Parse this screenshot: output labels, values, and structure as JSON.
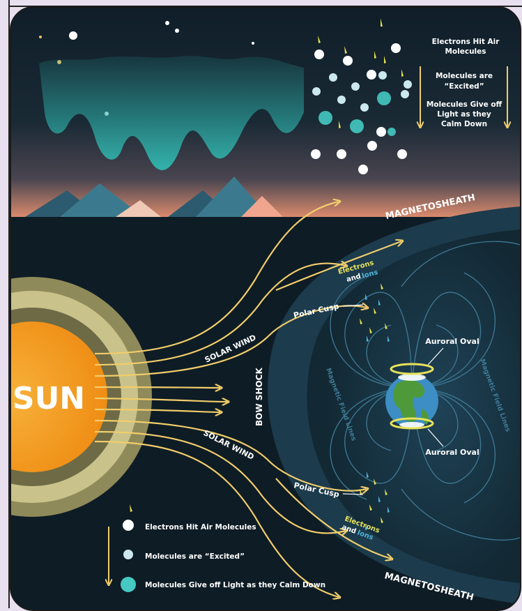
{
  "sky_legend": {
    "step1": [
      "Electrons Hit Air",
      "Molecules"
    ],
    "step2": [
      "Molecules are",
      "“Excited”"
    ],
    "step3": [
      "Molecules Give off",
      "Light as they",
      "Calm Down"
    ]
  },
  "labels": {
    "magnetosheath_top": "MAGNETOSHEATH",
    "magnetosheath_bottom": "MAGNETOSHEATH",
    "electrons_top": "Electrons",
    "and_ions_top_and": "and",
    "and_ions_top_ions": "Ions",
    "electrons_bottom": "Electrons",
    "and_ions_bottom_and": "and",
    "and_ions_bottom_ions": "Ions",
    "polar_cusp_top": "Polar Cusp",
    "polar_cusp_bottom": "Polar Cusp",
    "auroral_oval_top": "Auroral Oval",
    "auroral_oval_bottom": "Auroral Oval",
    "magnetic_field_lines_left": "Magnetic Field Lines",
    "magnetic_field_lines_right": "Magnetic Field Lines",
    "solar_wind_top": "SOLAR WIND",
    "solar_wind_bottom": "SOLAR WIND",
    "bow_shock": "BOW SHOCK",
    "sun": "SUN"
  },
  "bottom_legend": {
    "step1": "Electrons Hit Air Molecules",
    "step2": "Molecules are “Excited”",
    "step3": "Molecules Give off Light as they Calm Down"
  },
  "colors": {
    "sky_dark": "#0f1e29",
    "aurora": "#2aa5a0",
    "sun_core": "#f39a1e",
    "sun_ring_1": "#c9c28a",
    "sun_ring_2": "#8f8a5a",
    "arrow": "#f2cd6b",
    "field_dark": "#163545",
    "field_line": "#3f7a95",
    "oval": "#e8e25a",
    "ions": "#4fb3d9",
    "white": "#ffffff"
  }
}
